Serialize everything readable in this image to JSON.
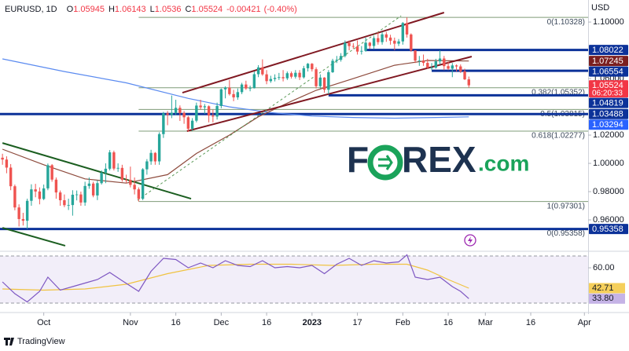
{
  "chart_data": {
    "type": "candlestick",
    "title": "EURUSD, 1D",
    "ohlc_labels": [
      "O",
      "H",
      "L",
      "C"
    ],
    "change": -0.00421,
    "change_label": "(-0.40%)",
    "currency": "USD",
    "brand": "TradingView",
    "watermark": [
      "F",
      "REX",
      ".com"
    ],
    "up_color": "#26a69a",
    "down_color": "#ef5350",
    "grid": false,
    "xlim": [
      -0.6,
      141.9
    ],
    "xticks": [
      {
        "value": 10,
        "label": "Oct"
      },
      {
        "value": 31,
        "label": "Nov"
      },
      {
        "value": 42,
        "label": "16"
      },
      {
        "value": 53,
        "label": "Dec"
      },
      {
        "value": 64,
        "label": "16"
      },
      {
        "value": 75,
        "label": "2023",
        "bold": true
      },
      {
        "value": 86,
        "label": "17"
      },
      {
        "value": 97,
        "label": "Feb"
      },
      {
        "value": 108,
        "label": "16"
      },
      {
        "value": 117,
        "label": "Mar"
      },
      {
        "value": 128,
        "label": "16"
      },
      {
        "value": 141,
        "label": "Apr"
      }
    ],
    "ylim": [
      0.9389,
      1.1156
    ],
    "yticks": [
      {
        "value": 1.1,
        "label": "1.10000"
      },
      {
        "value": 1.06,
        "label": "1.06000"
      },
      {
        "value": 1.02,
        "label": "1.02000"
      },
      {
        "value": 1.0,
        "label": "1.00000"
      },
      {
        "value": 0.98,
        "label": "0.98000"
      },
      {
        "value": 0.96,
        "label": "0.96000"
      }
    ],
    "open": [
      1.004,
      1.0027,
      0.997,
      0.9838,
      0.9688,
      0.9606,
      0.9594,
      0.9735,
      0.9816,
      0.9801,
      0.9748,
      0.9823,
      0.9987,
      0.9885,
      0.9794,
      0.9739,
      0.9704,
      0.9705,
      0.9778,
      0.978,
      0.9723,
      0.984,
      0.9857,
      0.9773,
      0.986,
      0.9934,
      0.9962,
      1.0078,
      0.9963,
      0.9968,
      0.9884,
      0.9883,
      0.9848,
      0.9816,
      0.9749,
      0.9958,
      1.0014,
      1.0074,
      1.0014,
      1.0207,
      1.0354,
      1.0343,
      1.0358,
      1.0393,
      1.0357,
      1.0326,
      1.0245,
      1.0302,
      1.0409,
      1.0397,
      1.0404,
      1.0338,
      1.0331,
      1.0406,
      1.0524,
      1.0536,
      1.049,
      1.0467,
      1.0504,
      1.0558,
      1.053,
      1.0532,
      1.0631,
      1.0679,
      1.063,
      1.0582,
      1.0597,
      1.0605,
      1.061,
      1.0602,
      1.0638,
      1.0613,
      1.0641,
      1.0609,
      1.0673,
      1.0705,
      1.0666,
      1.0546,
      1.0607,
      1.0521,
      1.0645,
      1.0726,
      1.0733,
      1.076,
      1.0853,
      1.083,
      1.0827,
      1.0791,
      1.0796,
      1.0854,
      1.0831,
      1.0886,
      1.0858,
      1.0913,
      1.089,
      1.0868,
      1.0847,
      1.0863,
      1.0993,
      1.0912,
      1.0799,
      1.0727,
      1.0727,
      1.0711,
      1.0677,
      1.0677,
      1.0722,
      1.0742,
      1.0688,
      1.067,
      1.0693,
      1.0686,
      1.0651,
      1.05945
    ],
    "high": [
      1.0068,
      1.005,
      0.9995,
      0.985,
      0.971,
      0.965,
      0.975,
      0.9852,
      0.9855,
      0.983,
      0.985,
      0.9999,
      0.9995,
      0.99,
      0.9808,
      0.978,
      0.975,
      0.981,
      0.9808,
      0.98,
      0.987,
      0.99,
      0.987,
      0.988,
      0.995,
      1.0,
      1.0094,
      1.009,
      1.0,
      0.999,
      0.992,
      0.9977,
      0.99,
      0.983,
      0.9966,
      1.003,
      1.0096,
      1.008,
      1.022,
      1.0364,
      1.037,
      1.048,
      1.045,
      1.041,
      1.037,
      1.0335,
      1.032,
      1.043,
      1.045,
      1.042,
      1.041,
      1.038,
      1.043,
      1.053,
      1.0545,
      1.059,
      1.052,
      1.053,
      1.057,
      1.0585,
      1.055,
      1.065,
      1.0695,
      1.0736,
      1.066,
      1.062,
      1.063,
      1.064,
      1.066,
      1.065,
      1.065,
      1.066,
      1.066,
      1.069,
      1.071,
      1.071,
      1.068,
      1.063,
      1.061,
      1.066,
      1.074,
      1.076,
      1.078,
      1.087,
      1.087,
      1.085,
      1.087,
      1.083,
      1.089,
      1.086,
      1.09,
      1.093,
      1.093,
      1.093,
      1.091,
      1.089,
      1.088,
      1.1,
      1.10328,
      1.092,
      1.08,
      1.076,
      1.077,
      1.074,
      1.071,
      1.074,
      1.08,
      1.076,
      1.072,
      1.071,
      1.07,
      1.07,
      1.067,
      1.06143
    ],
    "low": [
      0.999,
      0.993,
      0.981,
      0.9668,
      0.9553,
      0.956,
      0.95358,
      0.97,
      0.976,
      0.971,
      0.974,
      0.981,
      0.987,
      0.975,
      0.97,
      0.969,
      0.967,
      0.963,
      0.9738,
      0.97,
      0.97,
      0.982,
      0.976,
      0.974,
      0.985,
      0.986,
      0.995,
      0.995,
      0.994,
      0.987,
      0.986,
      0.983,
      0.978,
      0.97301,
      0.974,
      0.992,
      0.999,
      0.999,
      0.999,
      1.018,
      1.027,
      1.032,
      1.034,
      1.03,
      1.028,
      1.0223,
      1.023,
      1.029,
      1.038,
      1.035,
      1.029,
      1.029,
      1.031,
      1.039,
      1.046,
      1.048,
      1.044,
      1.045,
      1.049,
      1.052,
      1.051,
      1.053,
      1.061,
      1.062,
      1.056,
      1.057,
      1.058,
      1.059,
      1.058,
      1.059,
      1.06,
      1.06,
      1.059,
      1.06,
      1.065,
      1.065,
      1.053,
      1.053,
      1.05,
      1.049,
      1.064,
      1.071,
      1.072,
      1.075,
      1.08,
      1.081,
      1.077,
      1.077,
      1.079,
      1.081,
      1.081,
      1.084,
      1.084,
      1.086,
      1.084,
      1.08,
      1.083,
      1.084,
      1.089,
      1.079,
      1.071,
      1.069,
      1.069,
      1.067,
      1.066,
      1.067,
      1.07,
      1.066,
      1.066,
      1.061,
      1.065,
      1.064,
      1.059,
      1.0536
    ],
    "close": [
      1.0027,
      0.997,
      0.9838,
      0.9688,
      0.9606,
      0.9594,
      0.9735,
      0.9816,
      0.9801,
      0.9748,
      0.9823,
      0.9987,
      0.9885,
      0.9794,
      0.9739,
      0.9704,
      0.9705,
      0.9778,
      0.978,
      0.9723,
      0.984,
      0.9857,
      0.9773,
      0.986,
      0.9934,
      0.9962,
      1.0078,
      0.9963,
      0.9968,
      0.9884,
      0.9883,
      0.9848,
      0.9816,
      0.9749,
      0.9958,
      1.0014,
      1.0074,
      1.0014,
      1.0207,
      1.0354,
      1.0343,
      1.0358,
      1.0393,
      1.0357,
      1.0326,
      1.0245,
      1.0302,
      1.0409,
      1.0397,
      1.0404,
      1.0338,
      1.0331,
      1.0406,
      1.0524,
      1.0536,
      1.049,
      1.0467,
      1.0504,
      1.0558,
      1.053,
      1.0532,
      1.0631,
      1.0679,
      1.063,
      1.0582,
      1.0597,
      1.0605,
      1.061,
      1.0602,
      1.0638,
      1.0613,
      1.0641,
      1.0609,
      1.0673,
      1.0705,
      1.0666,
      1.0546,
      1.0607,
      1.0521,
      1.0645,
      1.0726,
      1.0733,
      1.076,
      1.0853,
      1.083,
      1.0827,
      1.0791,
      1.0796,
      1.0854,
      1.0831,
      1.0886,
      1.0858,
      1.0913,
      1.089,
      1.0868,
      1.0847,
      1.0863,
      1.0993,
      1.0912,
      1.0799,
      1.0727,
      1.0727,
      1.0711,
      1.0677,
      1.0677,
      1.0722,
      1.0742,
      1.0688,
      1.067,
      1.0693,
      1.0686,
      1.0651,
      1.05945,
      1.05524
    ],
    "ma200": {
      "color": "#5b8bf0",
      "x": [
        0,
        15,
        30,
        45,
        55,
        65,
        75,
        85,
        95,
        105,
        113
      ],
      "values": [
        1.0739,
        1.065,
        1.057,
        1.046,
        1.04,
        1.036,
        1.0335,
        1.0325,
        1.032,
        1.0325,
        1.03294
      ]
    },
    "ma50": {
      "color": "#8d4a3c",
      "x": [
        0,
        10,
        20,
        30,
        40,
        47,
        55,
        62,
        70,
        76,
        85,
        95,
        103,
        113
      ],
      "values": [
        1.01,
        0.999,
        0.989,
        0.986,
        0.992,
        1.007,
        1.02,
        1.033,
        1.044,
        1.0517,
        1.06,
        1.0694,
        1.0728,
        1.07245
      ]
    },
    "levels": [
      {
        "value": 1.08022,
        "from": 88
      },
      {
        "value": 1.06554,
        "from": 104
      },
      {
        "value": 1.04819,
        "from": 79
      },
      {
        "value": 1.03488
      },
      {
        "value": 0.95358
      }
    ],
    "level_color": "#0c3299",
    "price_markers": [
      {
        "value": 1.08022,
        "label": "1.08022",
        "color": "#0c3299"
      },
      {
        "value": 1.07245,
        "label": "1.07245",
        "color": "#7b1f1f"
      },
      {
        "value": 1.06554,
        "label": "1.06554",
        "color": "#0c3299"
      },
      {
        "value": 1.05524,
        "label": "1.05524",
        "color": "#f23645",
        "countdown": "06:20:33"
      },
      {
        "value": 1.04819,
        "label": "1.04819",
        "color": "#0c3299"
      },
      {
        "value": 1.03488,
        "label": "1.03488",
        "color": "#0c3299"
      },
      {
        "value": 1.03294,
        "label": "1.03294",
        "color": "#2962ff"
      },
      {
        "value": 0.95358,
        "label": "0.95358",
        "color": "#0c3299"
      }
    ],
    "fib": {
      "color": "#7f9c78",
      "from": 33,
      "levels": [
        {
          "value": 1.10328,
          "label": "0(1.10328)"
        },
        {
          "value": 1.05352,
          "label": "0.382(1.05352)"
        },
        {
          "value": 1.03815,
          "label": "0.5(1.03815)"
        },
        {
          "value": 1.02277,
          "label": "0.618(1.02277)"
        },
        {
          "value": 0.97301,
          "label": "1(0.97301)"
        },
        {
          "value": 0.95358,
          "label": "0(0.95358)"
        }
      ]
    },
    "trendlines": [
      {
        "color": "#801922",
        "dash": false,
        "points": [
          [
            43.6,
            1.05
          ],
          [
            107,
            1.1067
          ]
        ]
      },
      {
        "color": "#801922",
        "dash": false,
        "points": [
          [
            44.7,
            1.0228
          ],
          [
            113.7,
            1.0756
          ]
        ]
      },
      {
        "color": "#1b5e20",
        "dash": false,
        "points": [
          [
            0,
            1.0144
          ],
          [
            45.7,
            0.975
          ]
        ]
      },
      {
        "color": "#1b5e20",
        "dash": false,
        "points": [
          [
            0,
            0.9544
          ],
          [
            15.2,
            0.9417
          ]
        ]
      },
      {
        "color": "#5b9a58",
        "dash": true,
        "points": [
          [
            32.7,
            0.9739
          ],
          [
            96.6,
            1.1044
          ]
        ]
      }
    ],
    "rsi": {
      "color": "#7e57c2",
      "ylim": [
        26,
        72.7
      ],
      "bands": [
        30,
        70
      ],
      "yticks": [
        {
          "value": 60,
          "label": "60.00"
        }
      ],
      "x": [
        0,
        3,
        6,
        9,
        11,
        14,
        17,
        20,
        23,
        26,
        29,
        33,
        36,
        39,
        42,
        45,
        48,
        51,
        54,
        57,
        60,
        63,
        66,
        69,
        72,
        75,
        78,
        81,
        84,
        87,
        90,
        93,
        96,
        98,
        100,
        103,
        106,
        109,
        111,
        113
      ],
      "values": [
        48,
        38,
        31,
        40,
        52,
        41,
        44,
        47,
        50,
        56,
        49,
        40,
        57,
        68,
        67,
        60,
        64,
        60,
        66,
        62,
        61,
        66,
        60,
        61,
        60,
        62,
        55,
        63,
        68,
        62,
        66,
        64,
        65,
        71,
        52,
        50,
        52,
        44,
        40,
        33.8
      ],
      "ma": {
        "color": "#f0c341",
        "x": [
          0,
          10,
          20,
          30,
          40,
          50,
          60,
          70,
          80,
          90,
          98,
          103,
          108,
          113
        ],
        "values": [
          42,
          41,
          42,
          46,
          55,
          62,
          63,
          63,
          62,
          63,
          63,
          58,
          50,
          42.71
        ]
      },
      "markers": [
        {
          "value": 42.71,
          "label": "42.71",
          "color": "#f5cf5b"
        },
        {
          "value": 33.8,
          "label": "33.80",
          "color": "#c5b3e6"
        }
      ]
    }
  }
}
